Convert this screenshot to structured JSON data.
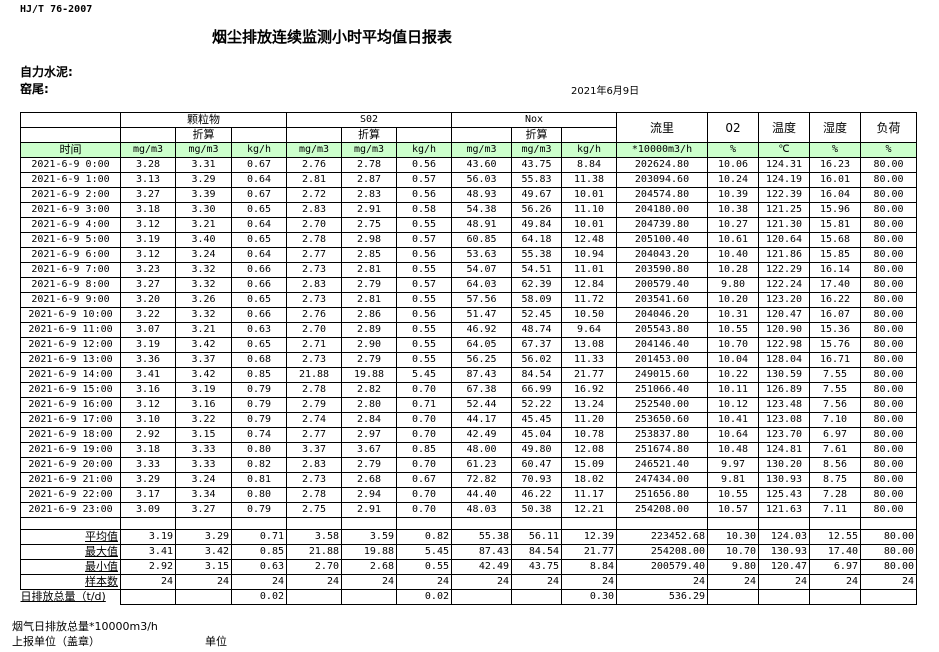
{
  "standard": "HJ/T  76-2007",
  "title": "烟尘排放连续监测小时平均值日报表",
  "company": "自力水泥:",
  "kiln": "窑尾:",
  "date": "2021年6月9日",
  "header": {
    "groups": [
      "颗粒物",
      "S02",
      "Nox"
    ],
    "converted": "折算",
    "flow": "流里",
    "o2": "02",
    "temp": "温度",
    "humidity": "湿度",
    "load": "负荷",
    "time": "时间",
    "units": [
      "mg/m3",
      "mg/m3",
      "kg/h",
      "mg/m3",
      "mg/m3",
      "kg/h",
      "mg/m3",
      "mg/m3",
      "kg/h",
      "*10000m3/h",
      "%",
      "℃",
      "%",
      "%"
    ]
  },
  "highlight_color": "#ccffcc",
  "rows": [
    [
      "2021-6-9 0:00",
      "3.28",
      "3.31",
      "0.67",
      "2.76",
      "2.78",
      "0.56",
      "43.60",
      "43.75",
      "8.84",
      "202624.80",
      "10.06",
      "124.31",
      "16.23",
      "80.00"
    ],
    [
      "2021-6-9 1:00",
      "3.13",
      "3.29",
      "0.64",
      "2.81",
      "2.87",
      "0.57",
      "56.03",
      "55.83",
      "11.38",
      "203094.60",
      "10.24",
      "124.19",
      "16.01",
      "80.00"
    ],
    [
      "2021-6-9 2:00",
      "3.27",
      "3.39",
      "0.67",
      "2.72",
      "2.83",
      "0.56",
      "48.93",
      "49.67",
      "10.01",
      "204574.80",
      "10.39",
      "122.39",
      "16.04",
      "80.00"
    ],
    [
      "2021-6-9 3:00",
      "3.18",
      "3.30",
      "0.65",
      "2.83",
      "2.91",
      "0.58",
      "54.38",
      "56.26",
      "11.10",
      "204180.00",
      "10.38",
      "121.25",
      "15.96",
      "80.00"
    ],
    [
      "2021-6-9 4:00",
      "3.12",
      "3.21",
      "0.64",
      "2.70",
      "2.75",
      "0.55",
      "48.91",
      "49.84",
      "10.01",
      "204739.80",
      "10.27",
      "121.30",
      "15.81",
      "80.00"
    ],
    [
      "2021-6-9 5:00",
      "3.19",
      "3.40",
      "0.65",
      "2.78",
      "2.98",
      "0.57",
      "60.85",
      "64.18",
      "12.48",
      "205100.40",
      "10.61",
      "120.64",
      "15.68",
      "80.00"
    ],
    [
      "2021-6-9 6:00",
      "3.12",
      "3.24",
      "0.64",
      "2.77",
      "2.85",
      "0.56",
      "53.63",
      "55.38",
      "10.94",
      "204043.20",
      "10.40",
      "121.86",
      "15.85",
      "80.00"
    ],
    [
      "2021-6-9 7:00",
      "3.23",
      "3.32",
      "0.66",
      "2.73",
      "2.81",
      "0.55",
      "54.07",
      "54.51",
      "11.01",
      "203590.80",
      "10.28",
      "122.29",
      "16.14",
      "80.00"
    ],
    [
      "2021-6-9 8:00",
      "3.27",
      "3.32",
      "0.66",
      "2.83",
      "2.79",
      "0.57",
      "64.03",
      "62.39",
      "12.84",
      "200579.40",
      "9.80",
      "122.24",
      "17.40",
      "80.00"
    ],
    [
      "2021-6-9 9:00",
      "3.20",
      "3.26",
      "0.65",
      "2.73",
      "2.81",
      "0.55",
      "57.56",
      "58.09",
      "11.72",
      "203541.60",
      "10.20",
      "123.20",
      "16.22",
      "80.00"
    ],
    [
      "2021-6-9 10:00",
      "3.22",
      "3.32",
      "0.66",
      "2.76",
      "2.86",
      "0.56",
      "51.47",
      "52.45",
      "10.50",
      "204046.20",
      "10.31",
      "120.47",
      "16.07",
      "80.00"
    ],
    [
      "2021-6-9 11:00",
      "3.07",
      "3.21",
      "0.63",
      "2.70",
      "2.89",
      "0.55",
      "46.92",
      "48.74",
      "9.64",
      "205543.80",
      "10.55",
      "120.90",
      "15.36",
      "80.00"
    ],
    [
      "2021-6-9 12:00",
      "3.19",
      "3.42",
      "0.65",
      "2.71",
      "2.90",
      "0.55",
      "64.05",
      "67.37",
      "13.08",
      "204146.40",
      "10.70",
      "122.98",
      "15.76",
      "80.00"
    ],
    [
      "2021-6-9 13:00",
      "3.36",
      "3.37",
      "0.68",
      "2.73",
      "2.79",
      "0.55",
      "56.25",
      "56.02",
      "11.33",
      "201453.00",
      "10.04",
      "128.04",
      "16.71",
      "80.00"
    ],
    [
      "2021-6-9 14:00",
      "3.41",
      "3.42",
      "0.85",
      "21.88",
      "19.88",
      "5.45",
      "87.43",
      "84.54",
      "21.77",
      "249015.60",
      "10.22",
      "130.59",
      "7.55",
      "80.00"
    ],
    [
      "2021-6-9 15:00",
      "3.16",
      "3.19",
      "0.79",
      "2.78",
      "2.82",
      "0.70",
      "67.38",
      "66.99",
      "16.92",
      "251066.40",
      "10.11",
      "126.89",
      "7.55",
      "80.00"
    ],
    [
      "2021-6-9 16:00",
      "3.12",
      "3.16",
      "0.79",
      "2.79",
      "2.80",
      "0.71",
      "52.44",
      "52.22",
      "13.24",
      "252540.00",
      "10.12",
      "123.48",
      "7.56",
      "80.00"
    ],
    [
      "2021-6-9 17:00",
      "3.10",
      "3.22",
      "0.79",
      "2.74",
      "2.84",
      "0.70",
      "44.17",
      "45.45",
      "11.20",
      "253650.60",
      "10.41",
      "123.08",
      "7.10",
      "80.00"
    ],
    [
      "2021-6-9 18:00",
      "2.92",
      "3.15",
      "0.74",
      "2.77",
      "2.97",
      "0.70",
      "42.49",
      "45.04",
      "10.78",
      "253837.80",
      "10.64",
      "123.70",
      "6.97",
      "80.00"
    ],
    [
      "2021-6-9 19:00",
      "3.18",
      "3.33",
      "0.80",
      "3.37",
      "3.67",
      "0.85",
      "48.00",
      "49.80",
      "12.08",
      "251674.80",
      "10.48",
      "124.81",
      "7.61",
      "80.00"
    ],
    [
      "2021-6-9 20:00",
      "3.33",
      "3.33",
      "0.82",
      "2.83",
      "2.79",
      "0.70",
      "61.23",
      "60.47",
      "15.09",
      "246521.40",
      "9.97",
      "130.20",
      "8.56",
      "80.00"
    ],
    [
      "2021-6-9 21:00",
      "3.29",
      "3.24",
      "0.81",
      "2.73",
      "2.68",
      "0.67",
      "72.82",
      "70.93",
      "18.02",
      "247434.00",
      "9.81",
      "130.93",
      "8.75",
      "80.00"
    ],
    [
      "2021-6-9 22:00",
      "3.17",
      "3.34",
      "0.80",
      "2.78",
      "2.94",
      "0.70",
      "44.40",
      "46.22",
      "11.17",
      "251656.80",
      "10.55",
      "125.43",
      "7.28",
      "80.00"
    ],
    [
      "2021-6-9 23:00",
      "3.09",
      "3.27",
      "0.79",
      "2.75",
      "2.91",
      "0.70",
      "48.03",
      "50.38",
      "12.21",
      "254208.00",
      "10.57",
      "121.63",
      "7.11",
      "80.00"
    ]
  ],
  "summary": [
    [
      "平均值",
      "3.19",
      "3.29",
      "0.71",
      "3.58",
      "3.59",
      "0.82",
      "55.38",
      "56.11",
      "12.39",
      "223452.68",
      "10.30",
      "124.03",
      "12.55",
      "80.00"
    ],
    [
      "最大值",
      "3.41",
      "3.42",
      "0.85",
      "21.88",
      "19.88",
      "5.45",
      "87.43",
      "84.54",
      "21.77",
      "254208.00",
      "10.70",
      "130.93",
      "17.40",
      "80.00"
    ],
    [
      "最小值",
      "2.92",
      "3.15",
      "0.63",
      "2.70",
      "2.68",
      "0.55",
      "42.49",
      "43.75",
      "8.84",
      "200579.40",
      "9.80",
      "120.47",
      "6.97",
      "80.00"
    ],
    [
      "样本数",
      "24",
      "24",
      "24",
      "24",
      "24",
      "24",
      "24",
      "24",
      "24",
      "24",
      "24",
      "24",
      "24",
      "24"
    ],
    [
      "日排放总量（t/d)",
      "",
      "",
      "0.02",
      "",
      "",
      "0.02",
      "",
      "",
      "0.30",
      "536.29",
      "",
      "",
      "",
      ""
    ]
  ],
  "footer": {
    "flue_total": "烟气日排放总量*10000m3/h",
    "reporting_unit": "上报单位（盖章）",
    "unit": "单位"
  }
}
